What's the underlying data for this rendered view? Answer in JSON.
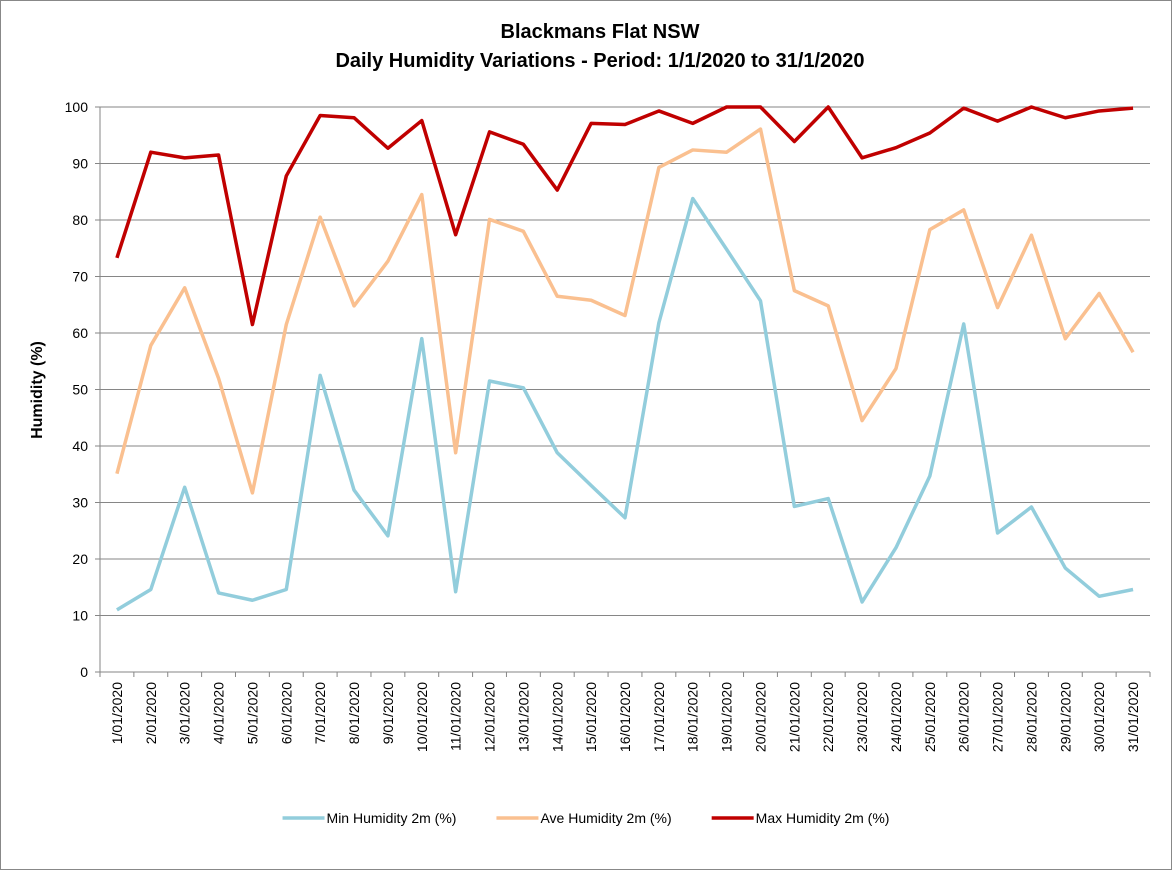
{
  "chart_data": {
    "type": "line",
    "title": "Blackmans Flat NSW",
    "subtitle": "Daily Humidity Variations - Period: 1/1/2020 to 31/1/2020",
    "y_label": "Humidity (%)",
    "categories": [
      "1/01/2020",
      "2/01/2020",
      "3/01/2020",
      "4/01/2020",
      "5/01/2020",
      "6/01/2020",
      "7/01/2020",
      "8/01/2020",
      "9/01/2020",
      "10/01/2020",
      "11/01/2020",
      "12/01/2020",
      "13/01/2020",
      "14/01/2020",
      "15/01/2020",
      "16/01/2020",
      "17/01/2020",
      "18/01/2020",
      "19/01/2020",
      "20/01/2020",
      "21/01/2020",
      "22/01/2020",
      "23/01/2020",
      "24/01/2020",
      "25/01/2020",
      "26/01/2020",
      "27/01/2020",
      "28/01/2020",
      "29/01/2020",
      "30/01/2020",
      "31/01/2020"
    ],
    "series": [
      {
        "name": "Min Humidity 2m (%)",
        "color": "#92cddc",
        "values": [
          11,
          14.6,
          32.7,
          14,
          12.7,
          14.6,
          52.5,
          32.2,
          24.1,
          59,
          14.2,
          51.5,
          50.3,
          38.8,
          33,
          27.3,
          61.8,
          83.8,
          74.8,
          65.7,
          29.3,
          30.7,
          12.4,
          22,
          34.7,
          61.6,
          24.6,
          29.2,
          18.4,
          13.4,
          14.6
        ]
      },
      {
        "name": "Ave Humidity 2m (%)",
        "color": "#fac090",
        "values": [
          35.1,
          57.8,
          68,
          52,
          31.7,
          61.5,
          80.5,
          64.8,
          72.7,
          84.5,
          38.8,
          80.1,
          78,
          66.5,
          65.8,
          63.1,
          89.3,
          92.4,
          92,
          96.1,
          67.5,
          64.8,
          44.5,
          53.7,
          78.3,
          81.8,
          64.5,
          77.3,
          59,
          67,
          56.6
        ]
      },
      {
        "name": "Max Humidity 2m (%)",
        "color": "#c00000",
        "values": [
          73.3,
          92,
          91,
          91.5,
          61.5,
          87.8,
          98.5,
          98.1,
          92.7,
          97.6,
          77.4,
          95.6,
          93.4,
          85.3,
          97.1,
          96.9,
          99.3,
          97.1,
          100,
          100,
          93.9,
          100,
          91,
          92.8,
          95.4,
          99.8,
          97.5,
          100,
          98.1,
          99.3,
          99.8
        ]
      }
    ],
    "ylim": [
      0,
      100
    ],
    "yticks": [
      0,
      10,
      20,
      30,
      40,
      50,
      60,
      70,
      80,
      90,
      100
    ],
    "grid": true,
    "legend": "bottom"
  }
}
